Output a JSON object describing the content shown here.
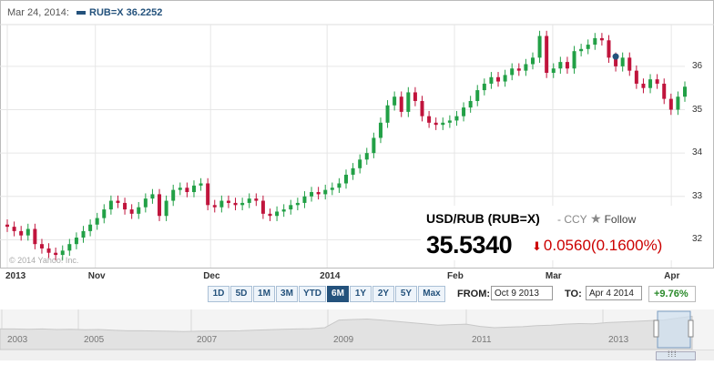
{
  "header": {
    "date_label": "Mar 24, 2014:",
    "legend_text": "RUB=X 36.2252",
    "legend_color": "#24527c"
  },
  "watermark": "© 2014 Yahoo! Inc.",
  "quote": {
    "title": "USD/RUB (RUB=X)",
    "ccy": "- CCY",
    "follow_label": "Follow",
    "star_icon": "star-icon",
    "price": "35.5340",
    "change": "0.0560",
    "change_pct": "(0.1600%)",
    "down_color": "#cc0000",
    "arrow_icon": "down-arrow-icon"
  },
  "chart_data": {
    "type": "candlestick",
    "x_ticks": [
      "2013",
      "Nov",
      "Dec",
      "2014",
      "Feb",
      "Mar",
      "Apr"
    ],
    "y_ticks": [
      "32",
      "33",
      "34",
      "35",
      "36"
    ],
    "ylim": [
      31.4,
      36.9
    ],
    "grid": true,
    "up_color": "#22a046",
    "down_color": "#c0143c",
    "marker_value": 36.2252,
    "closes": [
      32.3,
      32.2,
      32.1,
      32.25,
      31.9,
      31.8,
      31.7,
      31.65,
      31.75,
      31.9,
      32.05,
      32.2,
      32.35,
      32.5,
      32.7,
      32.9,
      32.85,
      32.7,
      32.6,
      32.75,
      32.95,
      33.05,
      32.55,
      32.9,
      33.15,
      33.2,
      33.1,
      33.25,
      33.3,
      32.8,
      32.75,
      32.9,
      32.85,
      32.8,
      32.85,
      32.95,
      32.9,
      32.6,
      32.55,
      32.65,
      32.7,
      32.8,
      32.85,
      33.0,
      33.1,
      33.05,
      33.15,
      33.2,
      33.3,
      33.5,
      33.65,
      33.85,
      34.0,
      34.35,
      34.7,
      35.1,
      35.3,
      34.95,
      35.4,
      35.2,
      34.85,
      34.7,
      34.65,
      34.7,
      34.75,
      34.85,
      35.05,
      35.2,
      35.45,
      35.6,
      35.75,
      35.65,
      35.8,
      35.95,
      35.9,
      36.05,
      36.2,
      36.7,
      35.85,
      35.95,
      36.1,
      35.95,
      36.35,
      36.4,
      36.5,
      36.65,
      36.6,
      36.2,
      36.0,
      36.2,
      35.9,
      35.6,
      35.5,
      35.7,
      35.6,
      35.25,
      35.0,
      35.3,
      35.53
    ]
  },
  "ranges": [
    "1D",
    "5D",
    "1M",
    "3M",
    "YTD",
    "6M",
    "1Y",
    "2Y",
    "5Y",
    "Max"
  ],
  "active_range": "6M",
  "from_label": "FROM:",
  "from_value": "Oct 9 2013",
  "to_label": "TO:",
  "to_value": "Apr 4 2014",
  "period_change": "+9.76%",
  "overview": {
    "years": [
      "2003",
      "2005",
      "2007",
      "2009",
      "2011",
      "2013"
    ]
  }
}
